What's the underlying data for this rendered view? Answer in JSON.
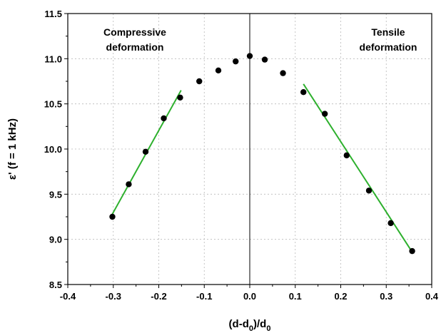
{
  "chart_data": {
    "type": "scatter",
    "title": "",
    "xlabel": "(d-d0)/d0",
    "xlabel_parts": [
      "(d-d",
      "0",
      ")/d",
      "0"
    ],
    "ylabel": "ε' (f = 1 kHz)",
    "xlim": [
      -0.4,
      0.4
    ],
    "ylim": [
      8.5,
      11.5
    ],
    "xticks": [
      -0.4,
      -0.3,
      -0.2,
      -0.1,
      0.0,
      0.1,
      0.2,
      0.3,
      0.4
    ],
    "yticks": [
      8.5,
      9.0,
      9.5,
      10.0,
      10.5,
      11.0,
      11.5
    ],
    "xtick_labels": [
      "-0.4",
      "-0.3",
      "-0.2",
      "-0.1",
      "0.0",
      "0.1",
      "0.2",
      "0.3",
      "0.4"
    ],
    "ytick_labels": [
      "8.5",
      "9.0",
      "9.5",
      "10.0",
      "10.5",
      "11.0",
      "11.5"
    ],
    "grid": true,
    "reference_line_x": 0.0,
    "annotations": [
      {
        "lines": [
          "Compressive",
          "deformation"
        ],
        "anchor": "top-left"
      },
      {
        "lines": [
          "Tensile",
          "deformation"
        ],
        "anchor": "top-right"
      }
    ],
    "series": [
      {
        "type": "scatter",
        "color": "#000000",
        "x": [
          -0.302,
          -0.266,
          -0.229,
          -0.189,
          -0.153,
          -0.111,
          -0.069,
          -0.031,
          0.0,
          0.033,
          0.073,
          0.118,
          0.165,
          0.213,
          0.262,
          0.31,
          0.357
        ],
        "y": [
          9.25,
          9.61,
          9.97,
          10.34,
          10.57,
          10.75,
          10.87,
          10.97,
          11.03,
          10.99,
          10.84,
          10.63,
          10.39,
          9.93,
          9.54,
          9.18,
          8.87
        ]
      },
      {
        "type": "line",
        "color": "#2db02d",
        "x": [
          -0.302,
          -0.151
        ],
        "y": [
          9.28,
          10.65
        ]
      },
      {
        "type": "line",
        "color": "#2db02d",
        "x": [
          0.118,
          0.357
        ],
        "y": [
          10.72,
          8.86
        ]
      }
    ]
  }
}
